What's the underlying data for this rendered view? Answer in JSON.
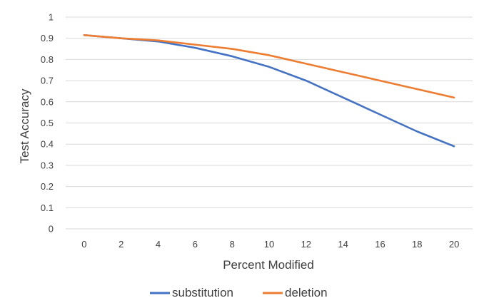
{
  "chart_data": {
    "type": "line",
    "title": "",
    "xlabel": "Percent Modified",
    "ylabel": "Test Accuracy",
    "x": [
      0,
      2,
      4,
      6,
      8,
      10,
      12,
      14,
      16,
      18,
      20
    ],
    "x_tick_labels": [
      "0",
      "2",
      "4",
      "6",
      "8",
      "10",
      "12",
      "14",
      "16",
      "18",
      "20"
    ],
    "y_tick_labels": [
      "0",
      "0.1",
      "0.2",
      "0.3",
      "0.4",
      "0.5",
      "0.6",
      "0.7",
      "0.8",
      "0.9",
      "1"
    ],
    "y_ticks": [
      0,
      0.1,
      0.2,
      0.3,
      0.4,
      0.5,
      0.6,
      0.7,
      0.8,
      0.9,
      1
    ],
    "ylim": [
      0,
      1
    ],
    "grid": "horizontal",
    "legend": "bottom",
    "series": [
      {
        "name": "substitution",
        "color": "#4472c4",
        "values": [
          0.915,
          0.9,
          0.885,
          0.855,
          0.815,
          0.765,
          0.7,
          0.62,
          0.54,
          0.46,
          0.39
        ]
      },
      {
        "name": "deletion",
        "color": "#ed7d31",
        "values": [
          0.915,
          0.9,
          0.89,
          0.87,
          0.85,
          0.82,
          0.78,
          0.74,
          0.7,
          0.66,
          0.62
        ]
      }
    ]
  }
}
